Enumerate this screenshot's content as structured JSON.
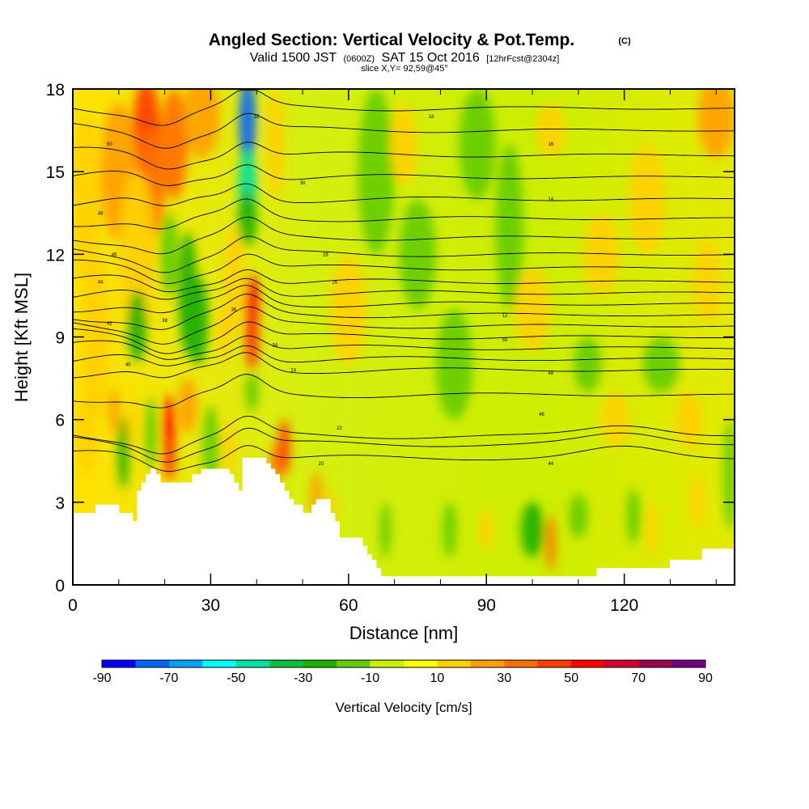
{
  "chart_data": {
    "type": "heatmap",
    "title": "Angled Section: Vertical Velocity & Pot.Temp.",
    "title_units": "(C)",
    "subtitle": {
      "valid": "Valid 1500 JST",
      "utc": "(0600Z)",
      "date": "SAT 15 Oct 2016",
      "forecast": "[12hrFcst@2304z]",
      "slice": "slice X,Y= 92,59@45°"
    },
    "xlabel": "Distance [nm]",
    "ylabel": "Height [Kft MSL]",
    "x_ticks": [
      0,
      30,
      60,
      90,
      120
    ],
    "y_ticks": [
      0,
      3,
      6,
      9,
      12,
      15,
      18
    ],
    "xlim": [
      0,
      144
    ],
    "ylim": [
      0,
      18
    ],
    "grid": false,
    "colorbar": {
      "title": "Vertical Velocity [cm/s]",
      "levels": [
        -90,
        -80,
        -70,
        -60,
        -50,
        -40,
        -30,
        -20,
        -10,
        0,
        10,
        20,
        30,
        40,
        50,
        60,
        70,
        80,
        90
      ],
      "tick_labels": [
        "-90",
        "-70",
        "-50",
        "-30",
        "-10",
        "10",
        "30",
        "50",
        "70",
        "90"
      ],
      "colors": [
        "#0000ff",
        "#0064ff",
        "#00a0ff",
        "#00ffff",
        "#00e0a0",
        "#00c040",
        "#20b000",
        "#66cc00",
        "#ccee00",
        "#ffff00",
        "#ffd000",
        "#ffa000",
        "#ff7000",
        "#ff3c00",
        "#ff0000",
        "#d00030",
        "#a00050",
        "#700080"
      ]
    },
    "terrain": {
      "x": [
        0,
        5,
        7,
        10,
        12,
        13,
        14,
        15,
        16,
        17,
        18,
        19,
        20,
        22,
        24,
        25,
        26,
        28,
        30,
        32,
        34,
        35,
        36,
        37,
        40,
        42,
        43,
        44,
        45,
        46,
        47,
        48,
        50,
        52,
        53,
        55,
        56,
        57,
        58,
        60,
        62,
        63,
        64,
        65,
        66,
        67,
        68,
        70,
        80,
        90,
        100,
        113,
        114,
        115,
        120,
        125,
        130,
        134,
        136,
        137,
        140,
        144
      ],
      "height": [
        2.6,
        2.9,
        2.9,
        2.6,
        2.6,
        2.3,
        3.4,
        3.7,
        4.0,
        4.2,
        4.0,
        3.7,
        3.7,
        3.7,
        3.7,
        3.7,
        4.0,
        4.2,
        4.2,
        4.2,
        4.0,
        3.7,
        3.4,
        4.6,
        4.6,
        4.4,
        4.2,
        4.0,
        3.7,
        3.4,
        3.1,
        2.9,
        2.6,
        2.9,
        3.1,
        3.1,
        2.6,
        2.3,
        1.7,
        1.7,
        1.7,
        1.4,
        1.1,
        0.9,
        0.6,
        0.3,
        0.3,
        0.3,
        0.3,
        0.3,
        0.3,
        0.3,
        0.6,
        0.6,
        0.6,
        0.6,
        0.9,
        0.9,
        0.9,
        1.3,
        1.3,
        1.3
      ]
    },
    "contour_labels": [
      "50",
      "48",
      "46",
      "44",
      "42",
      "40",
      "38",
      "36",
      "34",
      "32",
      "30",
      "28",
      "26",
      "24",
      "22",
      "20",
      "18",
      "16",
      "14",
      "12"
    ]
  }
}
